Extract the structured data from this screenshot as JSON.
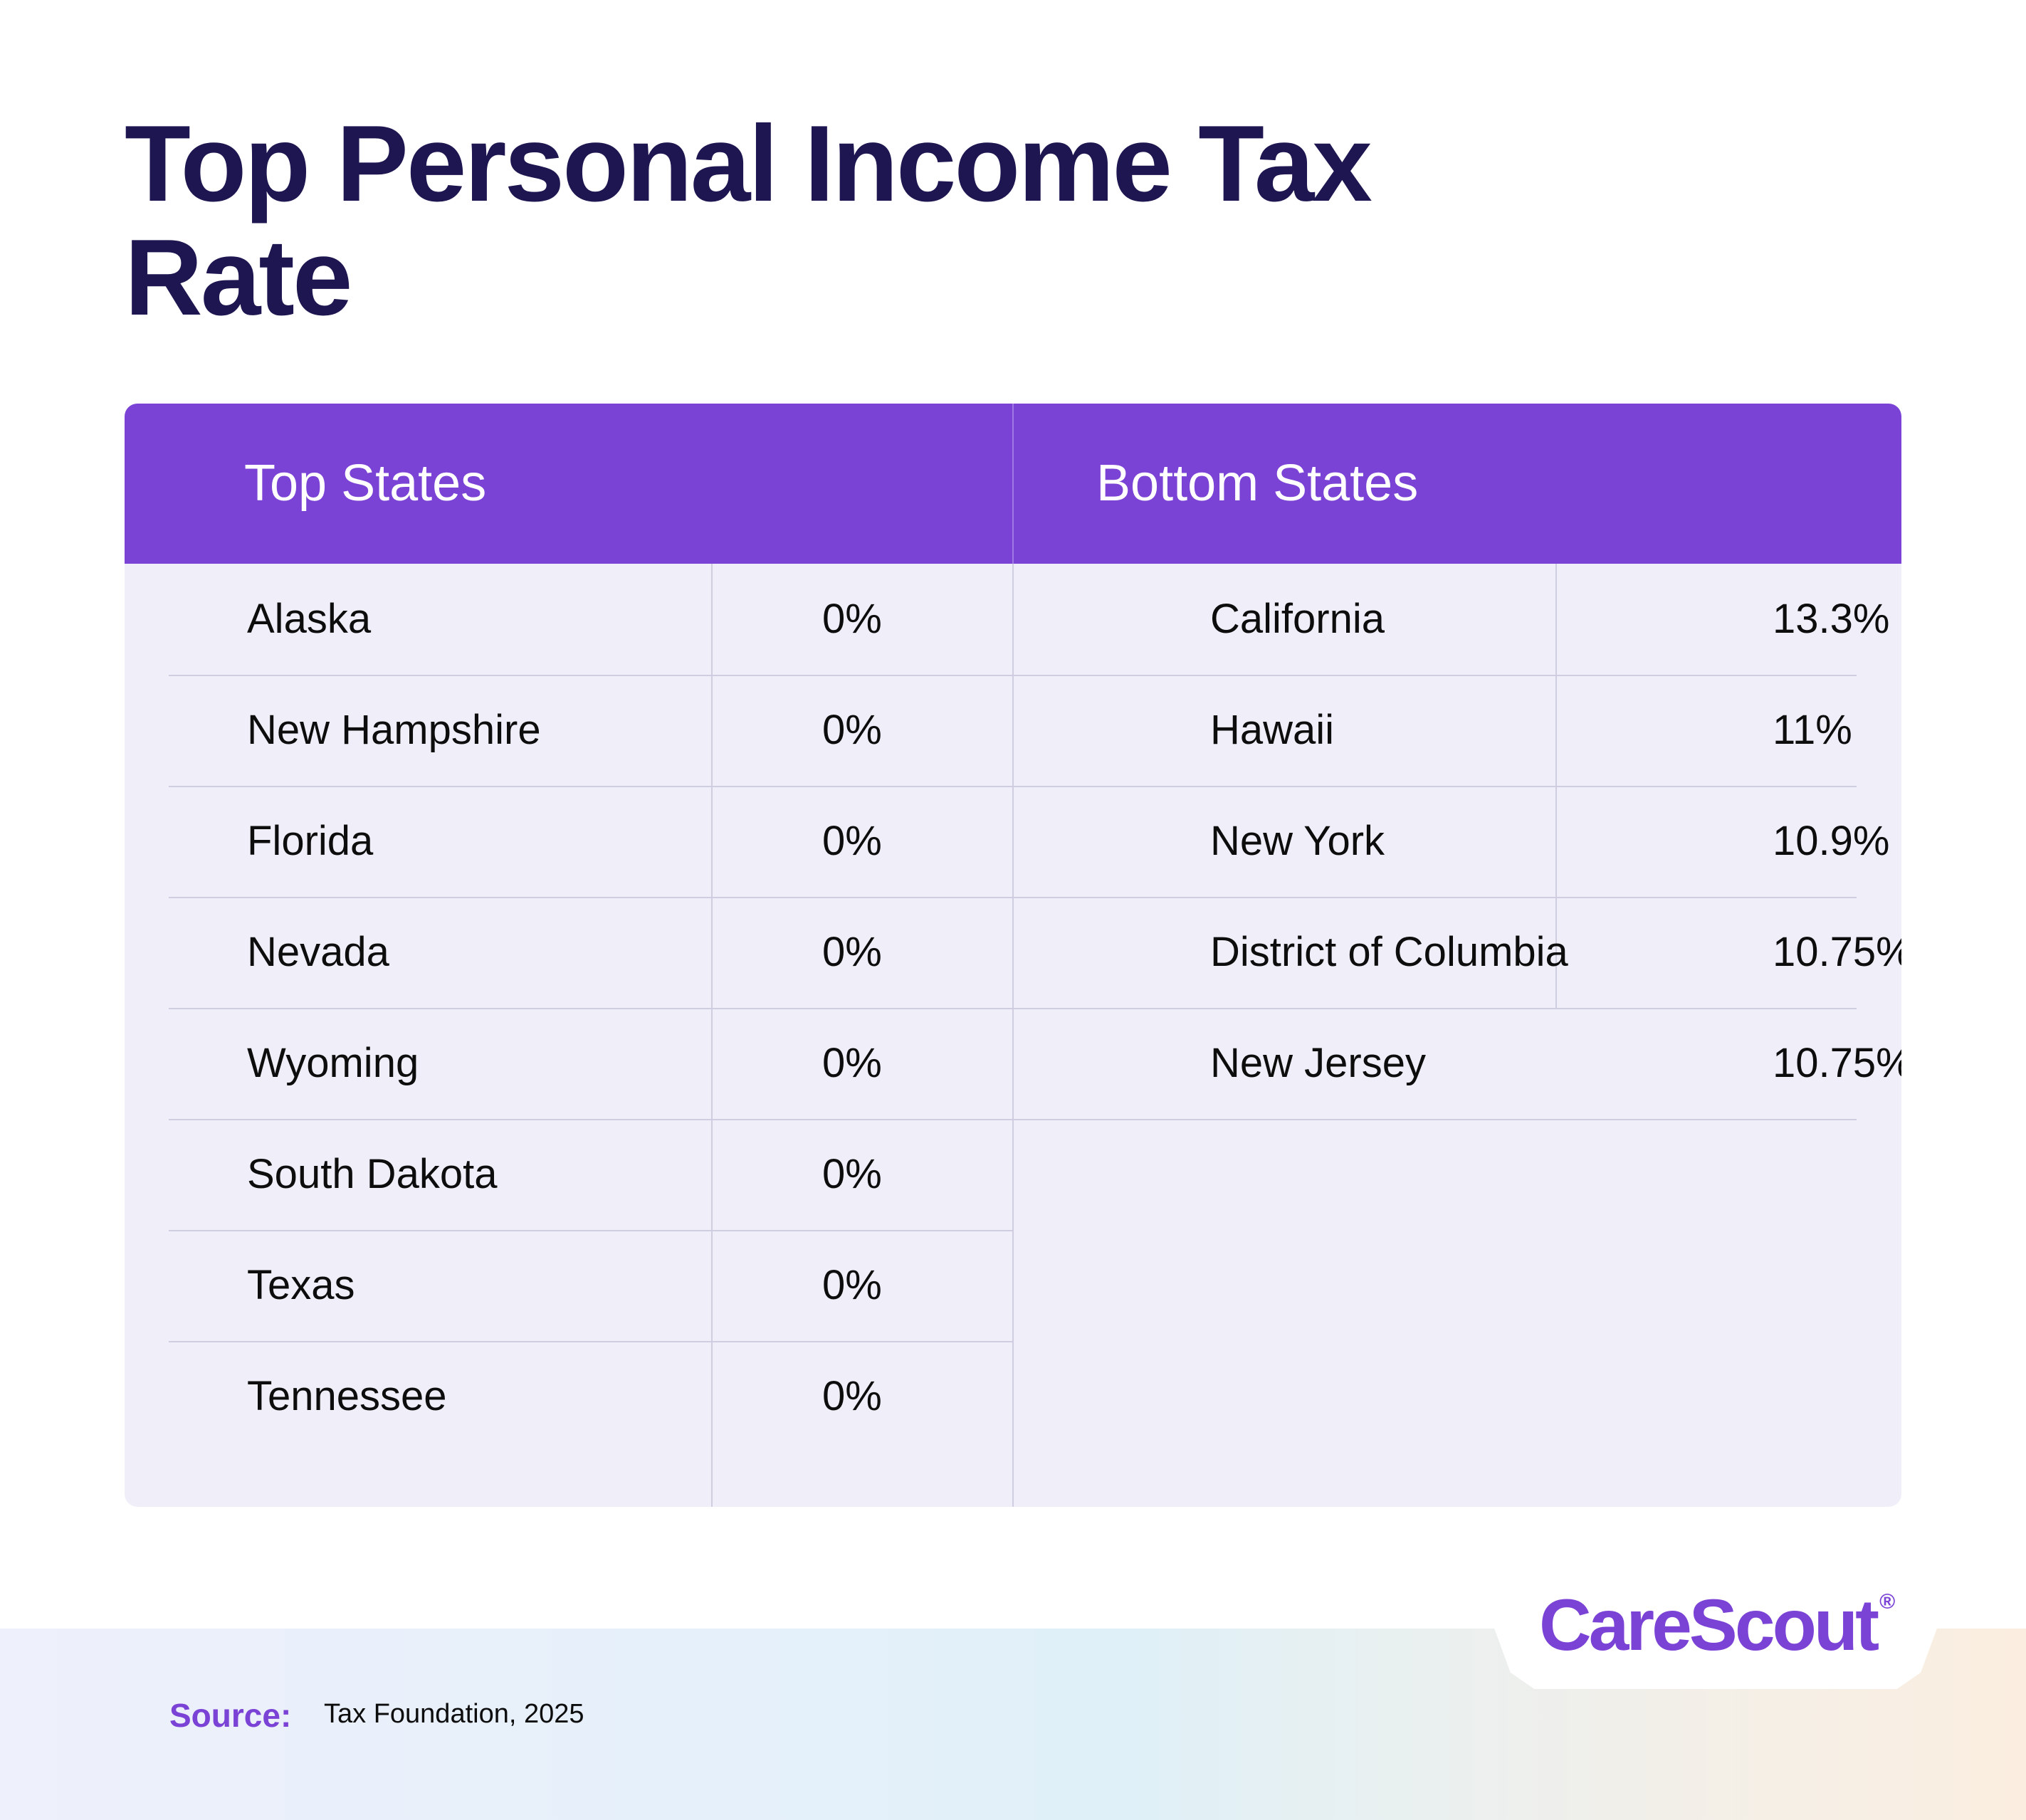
{
  "title": "Top Personal Income Tax Rate",
  "table": {
    "headers": {
      "top": "Top States",
      "bottom": "Bottom States"
    },
    "top_states": [
      {
        "state": "Alaska",
        "rate": "0%"
      },
      {
        "state": "New Hampshire",
        "rate": "0%"
      },
      {
        "state": "Florida",
        "rate": "0%"
      },
      {
        "state": "Nevada",
        "rate": "0%"
      },
      {
        "state": "Wyoming",
        "rate": "0%"
      },
      {
        "state": "South Dakota",
        "rate": "0%"
      },
      {
        "state": "Texas",
        "rate": "0%"
      },
      {
        "state": "Tennessee",
        "rate": "0%"
      }
    ],
    "bottom_states": [
      {
        "state": "California",
        "rate": "13.3%"
      },
      {
        "state": "Hawaii",
        "rate": "11%"
      },
      {
        "state": "New York",
        "rate": "10.9%"
      },
      {
        "state": "District of Columbia",
        "rate": "10.75%"
      },
      {
        "state": "New Jersey",
        "rate": "10.75%"
      }
    ]
  },
  "footer": {
    "source_label": "Source:",
    "source_text": "Tax Foundation, 2025",
    "brand": "CareScout",
    "registered_mark": "®"
  },
  "colors": {
    "title": "#1e1650",
    "accent": "#7b42d6",
    "table_bg": "#f0eff9"
  }
}
